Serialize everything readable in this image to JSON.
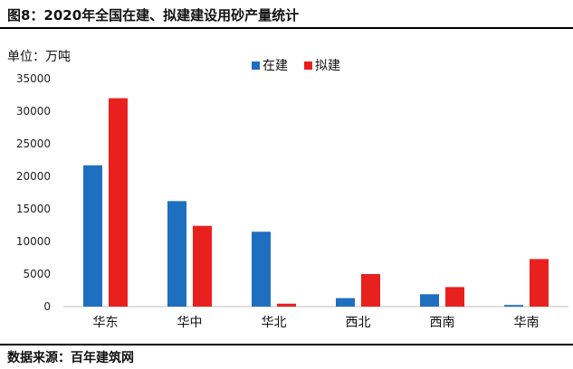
{
  "header": {
    "title": "图8：2020年全国在建、拟建建设用砂产量统计"
  },
  "footer": {
    "source": "数据来源：百年建筑网"
  },
  "chart_data": {
    "type": "bar",
    "ylabel": "单位：万吨",
    "ylim": [
      0,
      35000
    ],
    "yticks": [
      0,
      5000,
      10000,
      15000,
      20000,
      25000,
      30000,
      35000
    ],
    "categories": [
      "华东",
      "华中",
      "华北",
      "西北",
      "西南",
      "华南"
    ],
    "legend_position": "top",
    "grid": false,
    "series": [
      {
        "name": "在建",
        "color": "#1f6fc1",
        "values": [
          21700,
          16200,
          11500,
          1300,
          1900,
          250
        ]
      },
      {
        "name": "拟建",
        "color": "#e8211f",
        "values": [
          32000,
          12400,
          450,
          5000,
          3000,
          7300
        ]
      }
    ]
  }
}
